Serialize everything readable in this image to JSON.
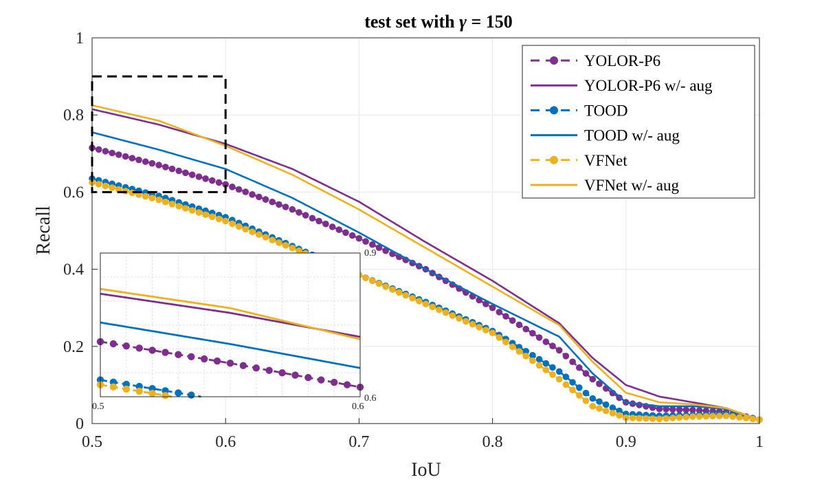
{
  "chart_data": {
    "type": "line",
    "title_prefix": "test set with ",
    "title_symbol": "γ",
    "title_suffix": " = 150",
    "xlabel": "IoU",
    "ylabel": "Recall",
    "xlim": [
      0.5,
      1.0
    ],
    "ylim": [
      0,
      1
    ],
    "xticks": [
      "0.5",
      "0.6",
      "0.7",
      "0.8",
      "0.9",
      "1"
    ],
    "yticks": [
      "0",
      "0.2",
      "0.4",
      "0.6",
      "0.8",
      "1"
    ],
    "grid": true,
    "legend_position": "top-right",
    "colors": {
      "purple": "#7E2F8E",
      "blue": "#0072BD",
      "yellow": "#EDB120"
    },
    "x": [
      0.5,
      0.55,
      0.6,
      0.65,
      0.7,
      0.75,
      0.8,
      0.85,
      0.875,
      0.9,
      0.925,
      0.95,
      0.975,
      1.0
    ],
    "series": [
      {
        "name": "YOLOR-P6",
        "style": "dashed-marker",
        "color": "#7E2F8E",
        "values": [
          0.715,
          0.67,
          0.62,
          0.555,
          0.48,
          0.4,
          0.3,
          0.19,
          0.115,
          0.055,
          0.038,
          0.035,
          0.03,
          0.01
        ]
      },
      {
        "name": "YOLOR-P6 w/- aug",
        "style": "solid",
        "color": "#7E2F8E",
        "values": [
          0.815,
          0.775,
          0.725,
          0.66,
          0.575,
          0.47,
          0.37,
          0.26,
          0.17,
          0.1,
          0.07,
          0.055,
          0.04,
          0.01
        ]
      },
      {
        "name": "TOOD",
        "style": "dashed-marker",
        "color": "#0072BD",
        "values": [
          0.635,
          0.59,
          0.535,
          0.46,
          0.385,
          0.315,
          0.24,
          0.135,
          0.065,
          0.025,
          0.02,
          0.022,
          0.025,
          0.01
        ]
      },
      {
        "name": "TOOD w/- aug",
        "style": "solid",
        "color": "#0072BD",
        "values": [
          0.755,
          0.71,
          0.66,
          0.585,
          0.495,
          0.4,
          0.31,
          0.225,
          0.13,
          0.055,
          0.045,
          0.045,
          0.038,
          0.01
        ]
      },
      {
        "name": "VFNet",
        "style": "dashed-marker",
        "color": "#EDB120",
        "values": [
          0.625,
          0.58,
          0.525,
          0.455,
          0.385,
          0.31,
          0.235,
          0.115,
          0.045,
          0.015,
          0.012,
          0.018,
          0.02,
          0.01
        ]
      },
      {
        "name": "VFNet w/- aug",
        "style": "solid",
        "color": "#EDB120",
        "values": [
          0.825,
          0.785,
          0.72,
          0.645,
          0.555,
          0.455,
          0.355,
          0.255,
          0.16,
          0.08,
          0.055,
          0.05,
          0.04,
          0.01
        ]
      }
    ],
    "zoom_box": {
      "x": [
        0.5,
        0.6
      ],
      "y": [
        0.6,
        0.9
      ]
    },
    "inset": {
      "xlim": [
        0.5,
        0.6
      ],
      "ylim": [
        0.6,
        0.9
      ],
      "xtick_labels": [
        "0.5",
        "0.6"
      ],
      "ytick_labels": [
        "0.9",
        "0.6"
      ]
    }
  }
}
